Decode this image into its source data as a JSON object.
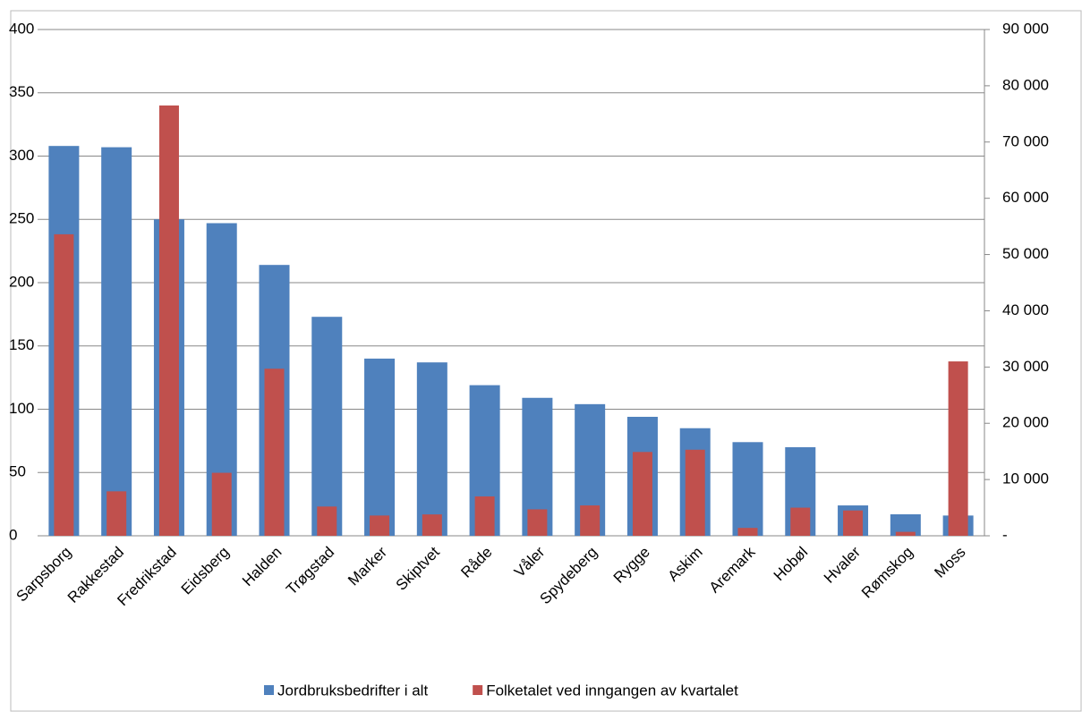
{
  "chart_data": {
    "type": "bar",
    "categories": [
      "Sarpsborg",
      "Rakkestad",
      "Fredrikstad",
      "Eidsberg",
      "Halden",
      "Trøgstad",
      "Marker",
      "Skiptvet",
      "Råde",
      "Våler",
      "Spydeberg",
      "Rygge",
      "Askim",
      "Aremark",
      "Hobøl",
      "Hvaler",
      "Rømskog",
      "Moss"
    ],
    "series": [
      {
        "name": "Jordbruksbedrifter i alt",
        "color": "#4f81bd",
        "values": [
          308,
          307,
          250,
          247,
          214,
          173,
          140,
          137,
          119,
          109,
          104,
          94,
          85,
          74,
          70,
          24,
          17,
          16
        ]
      },
      {
        "name": "Folketalet ved inngangen av kvartalet",
        "color": "#c0504d",
        "axis": "y2",
        "values": [
          53600,
          7900,
          76500,
          11200,
          29700,
          5200,
          3600,
          3800,
          7000,
          4700,
          5400,
          14900,
          15300,
          1400,
          5000,
          4500,
          700,
          31000
        ]
      }
    ],
    "ylim": [
      0,
      400
    ],
    "yticks": [
      0,
      50,
      100,
      150,
      200,
      250,
      300,
      350,
      400
    ],
    "y2lim": [
      0,
      90000
    ],
    "y2ticks": [
      {
        "value": 0,
        "label": "-"
      },
      {
        "value": 10000,
        "label": "10 000"
      },
      {
        "value": 20000,
        "label": "20 000"
      },
      {
        "value": 30000,
        "label": "30 000"
      },
      {
        "value": 40000,
        "label": "40 000"
      },
      {
        "value": 50000,
        "label": "50 000"
      },
      {
        "value": 60000,
        "label": "60 000"
      },
      {
        "value": 70000,
        "label": "70 000"
      },
      {
        "value": 80000,
        "label": "80 000"
      },
      {
        "value": 90000,
        "label": "90 000"
      }
    ],
    "grid": true,
    "legend": "bottom"
  }
}
